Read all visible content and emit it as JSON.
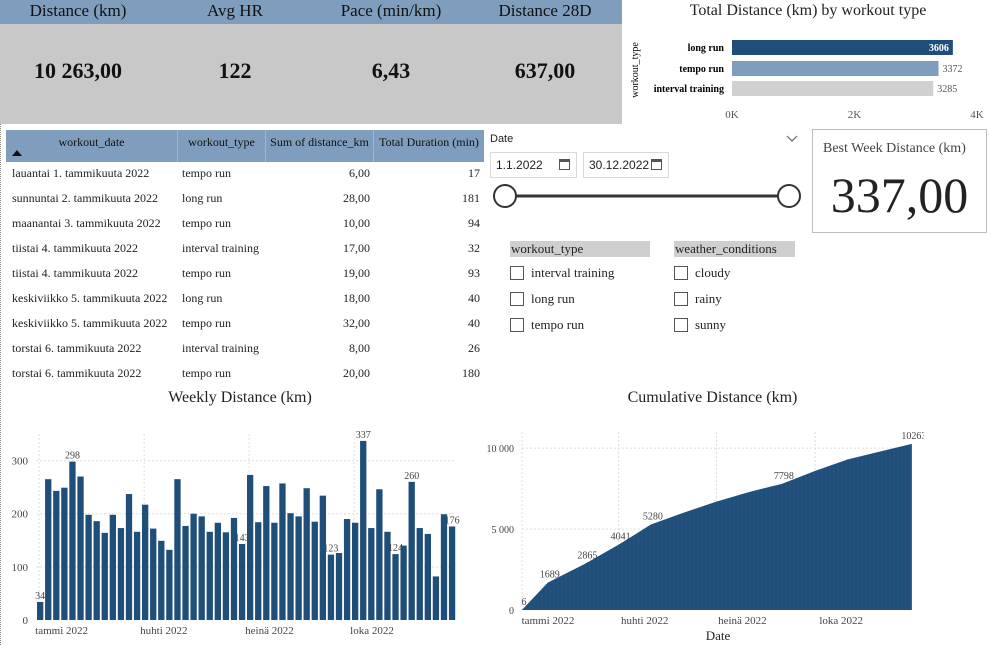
{
  "kpis": [
    {
      "title": "Distance (km)",
      "value": "10 263,00"
    },
    {
      "title": "Avg HR",
      "value": "122"
    },
    {
      "title": "Pace (min/km)",
      "value": "6,43"
    },
    {
      "title": "Distance 28D",
      "value": "637,00"
    }
  ],
  "table": {
    "columns": [
      "workout_date",
      "workout_type",
      "Sum of distance_km",
      "Total Duration (min)"
    ],
    "rows": [
      [
        "lauantai 1. tammikuuta 2022",
        "tempo run",
        "6,00",
        "17"
      ],
      [
        "sunnuntai 2. tammikuuta 2022",
        "long run",
        "28,00",
        "181"
      ],
      [
        "maanantai 3. tammikuuta 2022",
        "tempo run",
        "10,00",
        "94"
      ],
      [
        "tiistai 4. tammikuuta 2022",
        "interval training",
        "17,00",
        "32"
      ],
      [
        "tiistai 4. tammikuuta 2022",
        "tempo run",
        "19,00",
        "93"
      ],
      [
        "keskiviikko 5. tammikuuta 2022",
        "long run",
        "18,00",
        "40"
      ],
      [
        "keskiviikko 5. tammikuuta 2022",
        "tempo run",
        "32,00",
        "40"
      ],
      [
        "torstai 6. tammikuuta 2022",
        "interval training",
        "8,00",
        "26"
      ],
      [
        "torstai 6. tammikuuta 2022",
        "tempo run",
        "20,00",
        "180"
      ]
    ]
  },
  "date_slicer": {
    "label": "Date",
    "start": "1.1.2022",
    "end": "30.12.2022"
  },
  "workout_type_slicer": {
    "title": "workout_type",
    "items": [
      "interval training",
      "long run",
      "tempo run"
    ]
  },
  "weather_slicer": {
    "title": "weather_conditions",
    "items": [
      "cloudy",
      "rainy",
      "sunny"
    ]
  },
  "best_week_card": {
    "title": "Best Week Distance (km)",
    "value": "337,00"
  },
  "colors": {
    "dark_blue": "#1f4e79",
    "mid_blue": "#7f9dbd",
    "light_gray": "#d0d0d0",
    "kpi_bg": "#c8c8c8"
  },
  "chart_data": [
    {
      "type": "bar",
      "orientation": "horizontal",
      "title": "Total Distance (km) by workout type",
      "ylabel": "workout_type",
      "categories": [
        "long run",
        "tempo run",
        "interval training"
      ],
      "values": [
        3606,
        3372,
        3285
      ],
      "value_labels": [
        "3606",
        "3372",
        "3285"
      ],
      "xlim": [
        0,
        4000
      ],
      "x_ticks": [
        "0K",
        "2K",
        "4K"
      ],
      "bar_colors": [
        "#1f4e79",
        "#7f9dbd",
        "#d0d0d0"
      ]
    },
    {
      "type": "bar",
      "title": "Weekly Distance (km)",
      "values": [
        34,
        265,
        243,
        249,
        298,
        270,
        198,
        186,
        164,
        198,
        173,
        237,
        166,
        217,
        172,
        149,
        132,
        265,
        177,
        200,
        195,
        166,
        183,
        165,
        192,
        143,
        273,
        184,
        252,
        183,
        257,
        201,
        195,
        248,
        185,
        234,
        123,
        126,
        190,
        183,
        337,
        173,
        246,
        166,
        124,
        140,
        260,
        173,
        162,
        82,
        199,
        176
      ],
      "data_labels": [
        {
          "index": 0,
          "text": "34"
        },
        {
          "index": 4,
          "text": "298"
        },
        {
          "index": 25,
          "text": "143"
        },
        {
          "index": 36,
          "text": "123"
        },
        {
          "index": 40,
          "text": "337"
        },
        {
          "index": 44,
          "text": "124"
        },
        {
          "index": 46,
          "text": "260"
        },
        {
          "index": 51,
          "text": "176"
        }
      ],
      "y_ticks": [
        "0",
        "100",
        "200",
        "300"
      ],
      "ylim": [
        0,
        350
      ],
      "x_ticks": [
        {
          "index": 0,
          "label": "tammi 2022"
        },
        {
          "index": 13,
          "label": "huhti 2022"
        },
        {
          "index": 26,
          "label": "heinä 2022"
        },
        {
          "index": 39,
          "label": "loka 2022"
        }
      ]
    },
    {
      "type": "area",
      "title": "Cumulative Distance (km)",
      "xlabel": "Date",
      "points": [
        [
          0,
          6
        ],
        [
          24,
          1689
        ],
        [
          59,
          2865
        ],
        [
          90,
          4041
        ],
        [
          120,
          5280
        ],
        [
          150,
          6000
        ],
        [
          181,
          6700
        ],
        [
          212,
          7300
        ],
        [
          242,
          7798
        ],
        [
          273,
          8600
        ],
        [
          303,
          9300
        ],
        [
          334,
          9800
        ],
        [
          363,
          10263
        ]
      ],
      "data_labels": [
        {
          "x": 0,
          "text": "6"
        },
        {
          "x": 24,
          "text": "1689"
        },
        {
          "x": 59,
          "text": "2865"
        },
        {
          "x": 90,
          "text": "4041"
        },
        {
          "x": 120,
          "text": "5280"
        },
        {
          "x": 242,
          "text": "7798"
        },
        {
          "x": 363,
          "text": "10263"
        }
      ],
      "y_ticks": [
        {
          "value": 0,
          "label": "0"
        },
        {
          "value": 5000,
          "label": "5 000"
        },
        {
          "value": 10000,
          "label": "10 000"
        }
      ],
      "ylim": [
        0,
        11000
      ],
      "xlim": [
        0,
        365
      ],
      "x_ticks": [
        {
          "x": 0,
          "label": "tammi 2022"
        },
        {
          "x": 90,
          "label": "huhti 2022"
        },
        {
          "x": 181,
          "label": "heinä 2022"
        },
        {
          "x": 273,
          "label": "loka 2022"
        }
      ]
    }
  ]
}
